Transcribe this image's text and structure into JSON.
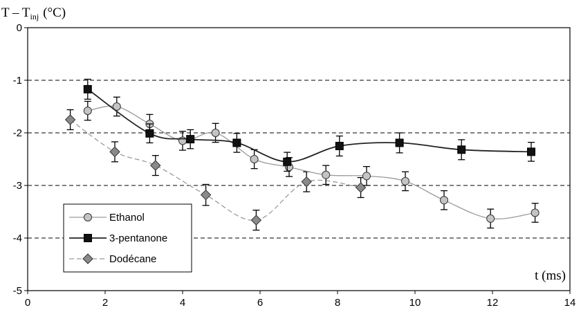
{
  "chart_data": {
    "type": "line",
    "ylabel_main": "T – T",
    "ylabel_sub": "inj",
    "ylabel_unit": "(°C)",
    "xlabel": "t (ms)",
    "xlim": [
      0,
      14
    ],
    "ylim": [
      -5,
      0
    ],
    "xticks": [
      "0",
      "2",
      "4",
      "6",
      "8",
      "10",
      "12",
      "14"
    ],
    "yticks": [
      "0",
      "-1",
      "-2",
      "-3",
      "-4",
      "-5"
    ],
    "grid": "horizontal dashed",
    "legend_position": "bottom-left",
    "series": [
      {
        "name": "Ethanol",
        "marker": "circle",
        "line_color": "#9a9a9a",
        "marker_fill": "#c4c4c4",
        "dashed": false,
        "points": [
          {
            "x": 1.55,
            "y": -1.58,
            "err": 0.18
          },
          {
            "x": 2.3,
            "y": -1.5,
            "err": 0.18
          },
          {
            "x": 3.15,
            "y": -1.83,
            "err": 0.18
          },
          {
            "x": 4.0,
            "y": -2.15,
            "err": 0.18
          },
          {
            "x": 4.85,
            "y": -2.0,
            "err": 0.18
          },
          {
            "x": 5.85,
            "y": -2.5,
            "err": 0.18
          },
          {
            "x": 6.75,
            "y": -2.65,
            "err": 0.18
          },
          {
            "x": 7.7,
            "y": -2.8,
            "err": 0.18
          },
          {
            "x": 8.75,
            "y": -2.82,
            "err": 0.18
          },
          {
            "x": 9.75,
            "y": -2.92,
            "err": 0.18
          },
          {
            "x": 10.75,
            "y": -3.28,
            "err": 0.18
          },
          {
            "x": 11.95,
            "y": -3.63,
            "err": 0.18
          },
          {
            "x": 13.1,
            "y": -3.52,
            "err": 0.18
          }
        ]
      },
      {
        "name": "3-pentanone",
        "marker": "square",
        "line_color": "#222222",
        "marker_fill": "#111111",
        "dashed": false,
        "points": [
          {
            "x": 1.55,
            "y": -1.17,
            "err": 0.19
          },
          {
            "x": 3.15,
            "y": -2.01,
            "err": 0.18
          },
          {
            "x": 4.2,
            "y": -2.12,
            "err": 0.18
          },
          {
            "x": 5.4,
            "y": -2.19,
            "err": 0.18
          },
          {
            "x": 6.7,
            "y": -2.55,
            "err": 0.18
          },
          {
            "x": 8.05,
            "y": -2.25,
            "err": 0.19
          },
          {
            "x": 9.6,
            "y": -2.19,
            "err": 0.19
          },
          {
            "x": 11.2,
            "y": -2.32,
            "err": 0.19
          },
          {
            "x": 13.0,
            "y": -2.36,
            "err": 0.18
          }
        ]
      },
      {
        "name": "Dodécane",
        "marker": "diamond",
        "line_color": "#9a9a9a",
        "marker_fill": "#8a8a8a",
        "dashed": true,
        "points": [
          {
            "x": 1.1,
            "y": -1.75,
            "err": 0.19
          },
          {
            "x": 2.25,
            "y": -2.36,
            "err": 0.19
          },
          {
            "x": 3.3,
            "y": -2.62,
            "err": 0.19
          },
          {
            "x": 4.6,
            "y": -3.18,
            "err": 0.2
          },
          {
            "x": 5.9,
            "y": -3.66,
            "err": 0.19
          },
          {
            "x": 7.2,
            "y": -2.93,
            "err": 0.19
          },
          {
            "x": 8.6,
            "y": -3.04,
            "err": 0.19
          }
        ]
      }
    ]
  }
}
